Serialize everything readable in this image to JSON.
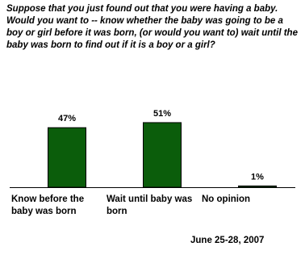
{
  "chart_data": {
    "type": "bar",
    "title": "Suppose that you just found out that you were having a baby. Would you want to -- know whether the baby was going to be a boy or girl before it was born, (or would you want to) wait until the baby was born to find out if it is a boy or a girl?",
    "categories": [
      "Know before the baby was born",
      "Wait until baby was born",
      "No opinion"
    ],
    "values": [
      47,
      51,
      1
    ],
    "value_labels": [
      "47%",
      "51%",
      "1%"
    ],
    "color": "#0b5d0b",
    "date": "June 25-28, 2007"
  }
}
